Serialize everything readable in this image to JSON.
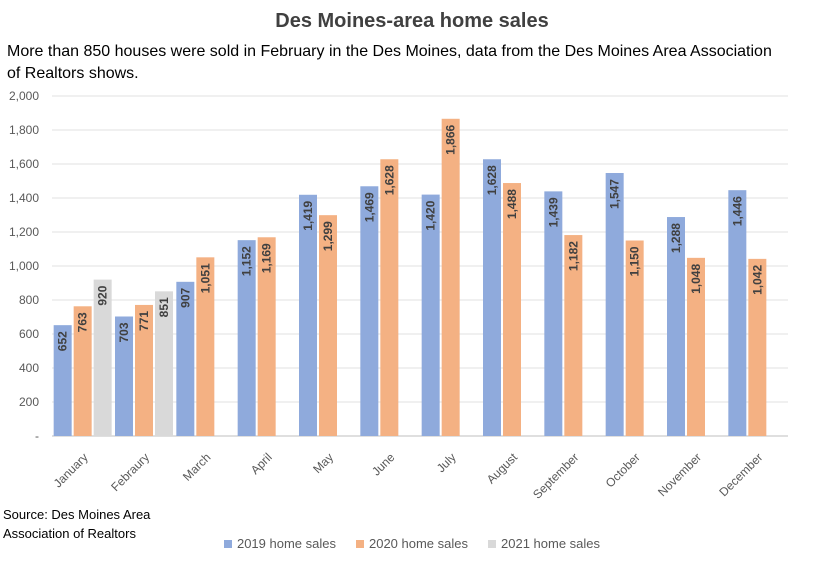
{
  "chart_data": {
    "type": "bar",
    "title": "Des Moines-area home sales",
    "subtitle": "More than 850 houses were sold in February in the Des Moines, data from the Des Moines Area Association of Realtors shows.",
    "source_lines": [
      "Source: Des Moines Area",
      "Association of Realtors"
    ],
    "categories": [
      "January",
      "Febraury",
      "March",
      "April",
      "May",
      "June",
      "July",
      "August",
      "September",
      "October",
      "November",
      "December"
    ],
    "series": [
      {
        "name": "2019 home sales",
        "color": "#8faadc",
        "values": [
          652,
          703,
          907,
          1152,
          1419,
          1469,
          1420,
          1628,
          1439,
          1547,
          1288,
          1446
        ]
      },
      {
        "name": "2020 home sales",
        "color": "#f4b183",
        "values": [
          763,
          771,
          1051,
          1169,
          1299,
          1628,
          1866,
          1488,
          1182,
          1150,
          1048,
          1042
        ]
      },
      {
        "name": "2021 home sales",
        "color": "#d9d9d9",
        "values": [
          920,
          851,
          null,
          null,
          null,
          null,
          null,
          null,
          null,
          null,
          null,
          null
        ]
      }
    ],
    "yticks": [
      "-",
      "200",
      "400",
      "600",
      "800",
      "1,000",
      "1,200",
      "1,400",
      "1,600",
      "1,800",
      "2,000"
    ],
    "ylim": [
      0,
      2000
    ],
    "grid": true,
    "legend_position": "bottom"
  }
}
